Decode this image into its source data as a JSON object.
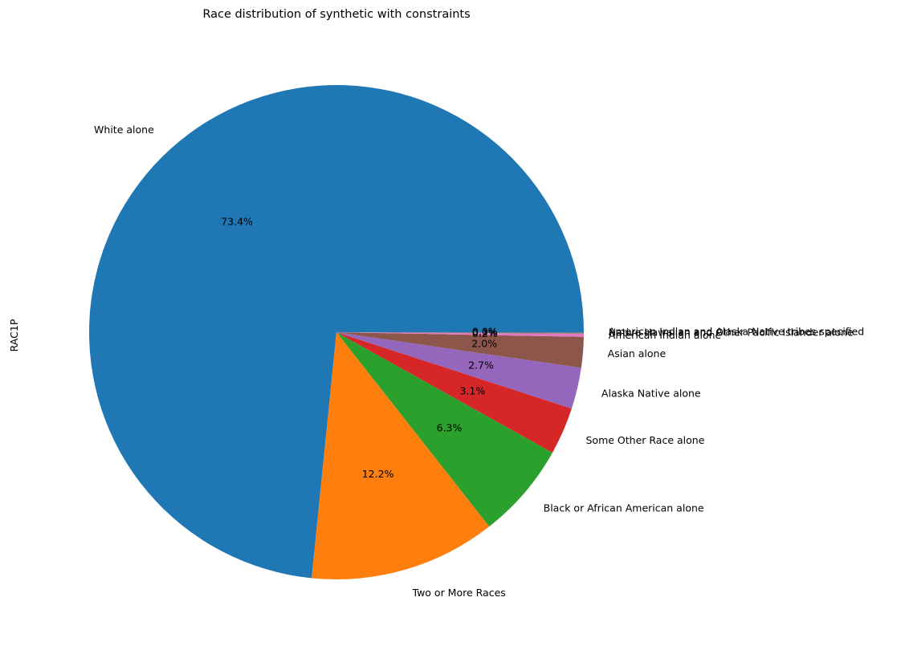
{
  "chart_data": {
    "type": "pie",
    "title": "Race distribution of synthetic with constraints",
    "ylabel": "RAC1P",
    "start_angle_deg": 0,
    "direction": "counterclockwise",
    "slices": [
      {
        "label": "White alone",
        "value": 73.4,
        "pct_label": "73.4%",
        "color": "#1f77b4"
      },
      {
        "label": "Two or More Races",
        "value": 12.2,
        "pct_label": "12.2%",
        "color": "#ff7f0e"
      },
      {
        "label": "Black or African American alone",
        "value": 6.3,
        "pct_label": "6.3%",
        "color": "#2ca02c"
      },
      {
        "label": "Some Other Race alone",
        "value": 3.1,
        "pct_label": "3.1%",
        "color": "#d62728"
      },
      {
        "label": "Alaska Native alone",
        "value": 2.7,
        "pct_label": "2.7%",
        "color": "#9467bd"
      },
      {
        "label": "Asian alone",
        "value": 2.0,
        "pct_label": "2.0%",
        "color": "#8c564b"
      },
      {
        "label": "American Indian alone",
        "value": 0.2,
        "pct_label": "0.2%",
        "color": "#e377c2"
      },
      {
        "label": "Native Hawaiian and Other Pacific Islander alone",
        "value": 0.1,
        "pct_label": "0.1%",
        "color": "#7f7f7f"
      },
      {
        "label": "American Indian and Alaska Native tribes specified",
        "value": 0.0,
        "pct_label": "0.0%",
        "color": "#bcbd22"
      }
    ]
  }
}
